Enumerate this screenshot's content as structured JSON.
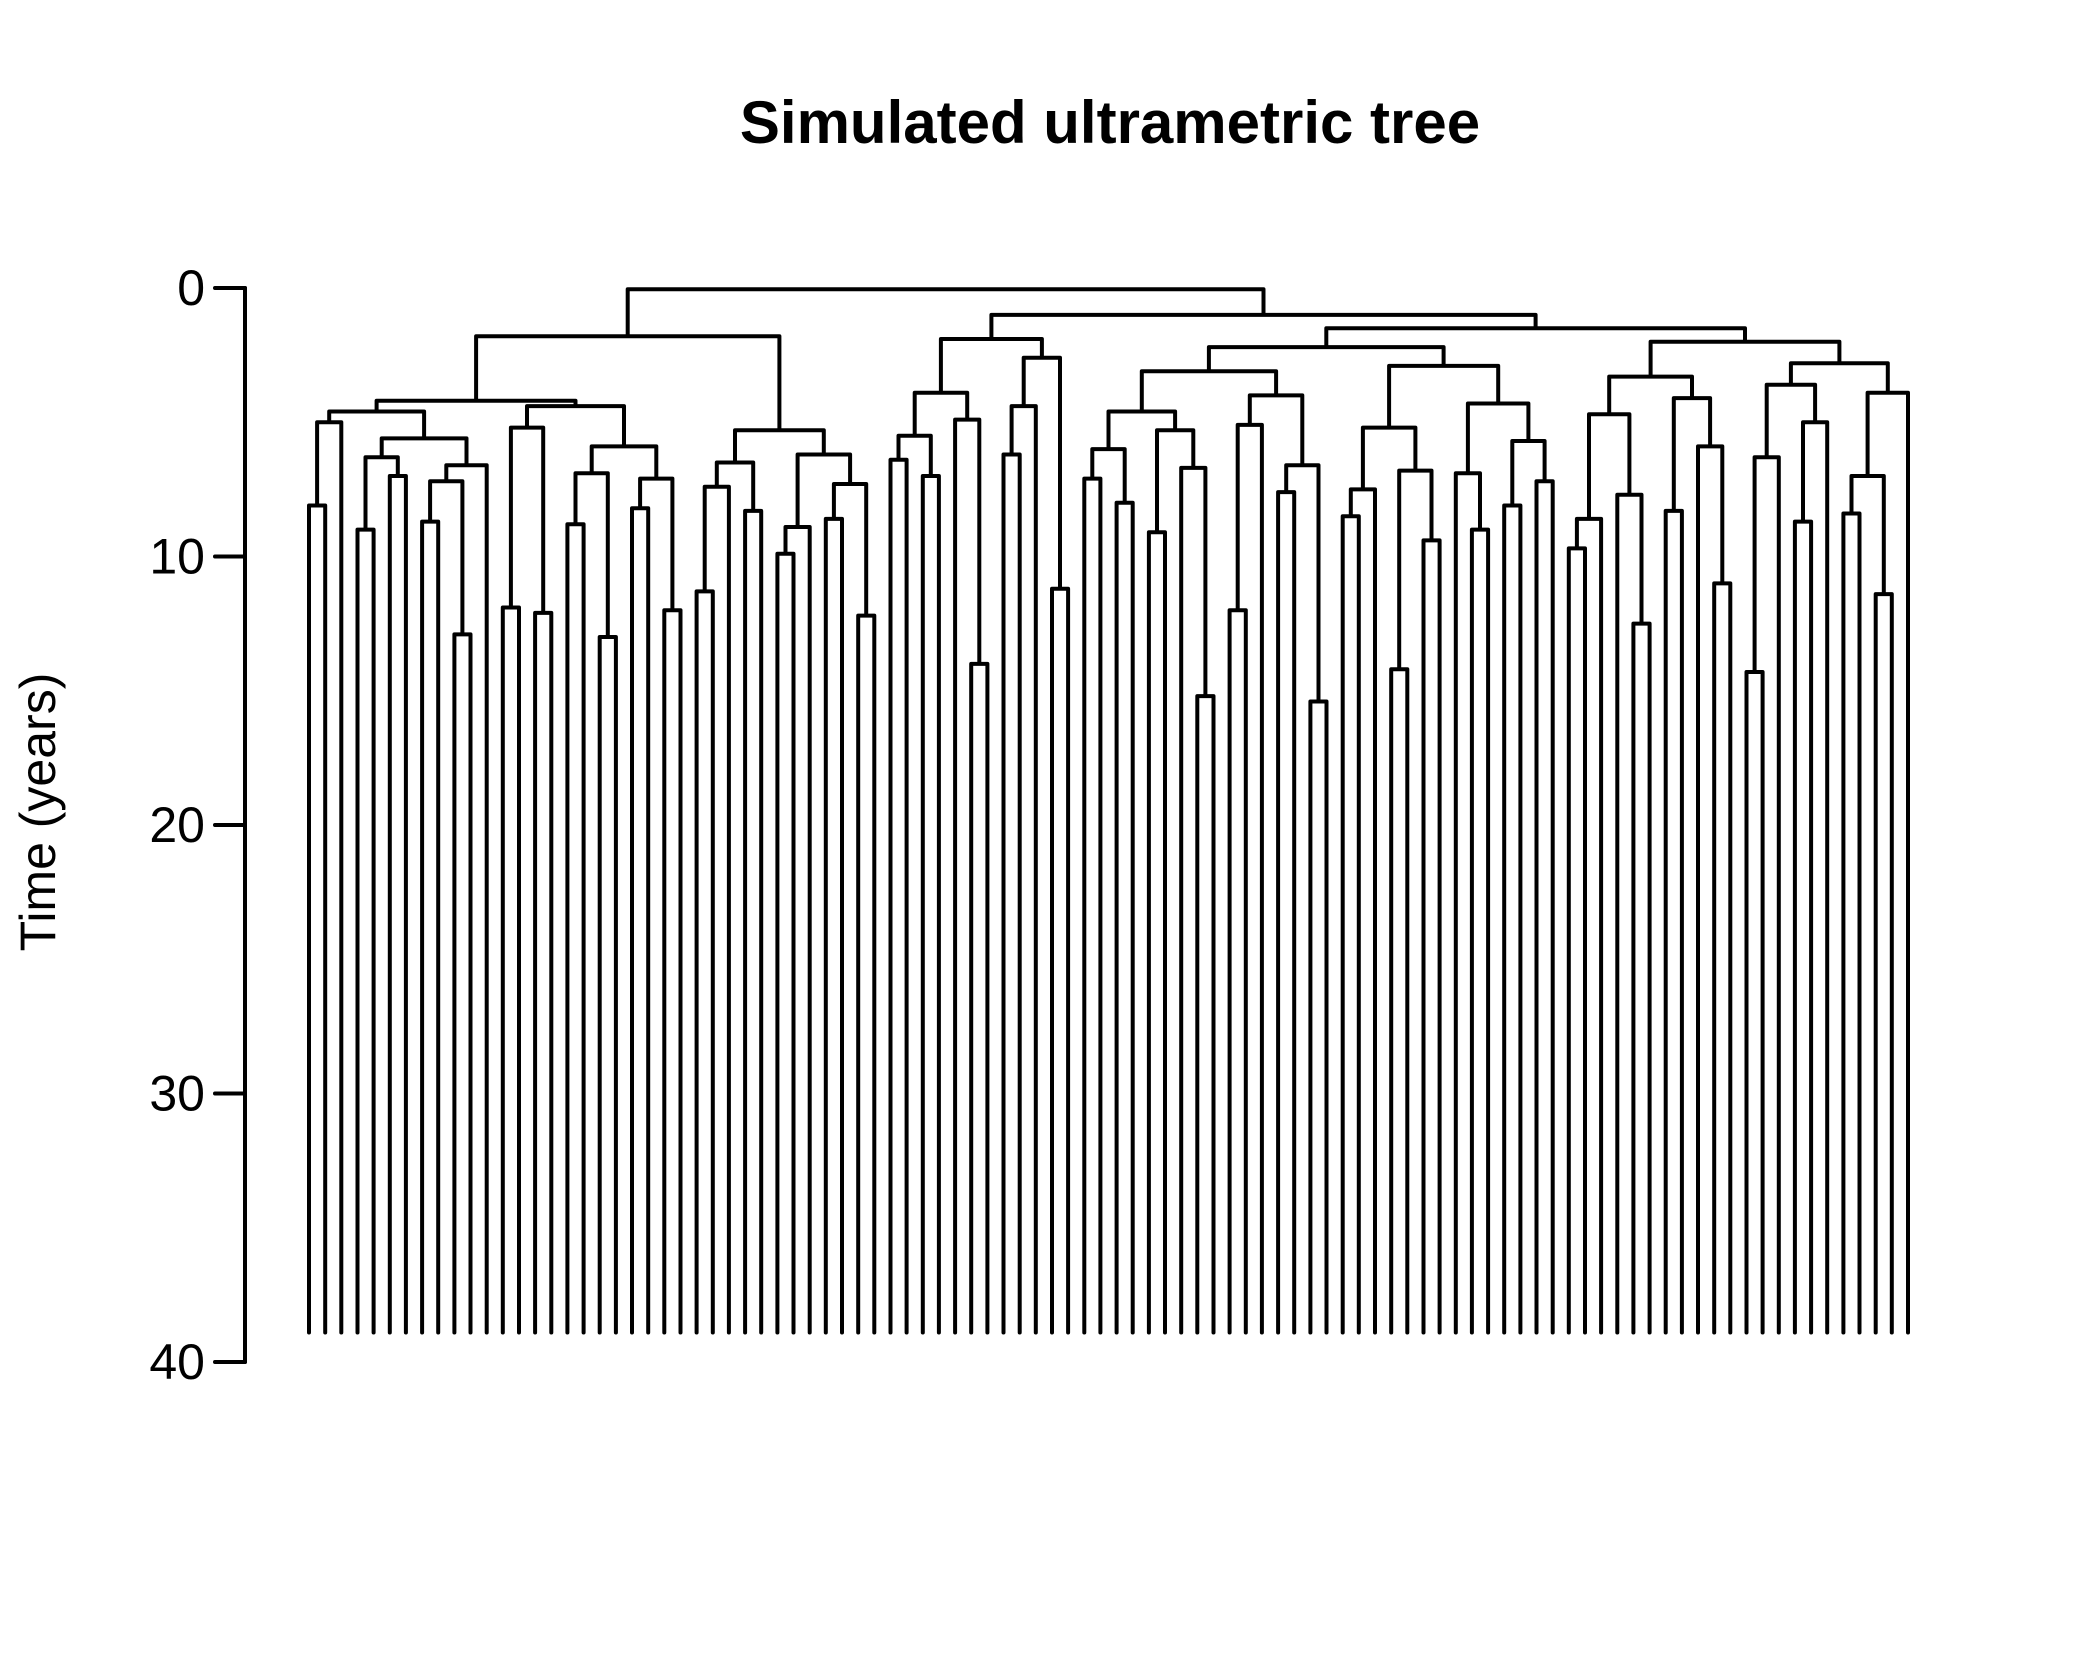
{
  "title": "Simulated ultrametric tree",
  "chart_data": {
    "type": "dendrogram",
    "title": "Simulated ultrametric tree",
    "ylabel": "Time (years)",
    "xlabel": "",
    "y_axis": {
      "ticks": [
        0,
        10,
        20,
        30,
        40
      ],
      "range": [
        0,
        40
      ],
      "direction": "down",
      "unit": "years"
    },
    "orientation": "tips-down",
    "grid": false,
    "legend": false,
    "n_tips": 100,
    "tip_time_years": 38.9,
    "branch_color": "#000000",
    "background_color": "#ffffff",
    "tree_format": "[node_time_years, child1, child2]; 0 denotes a tip whose branch extends to tip_time_years",
    "tree": [
      0.05,
      [
        1.8,
        [
          4.2,
          [
            4.6,
            [
              5.0,
              [
                8.1,
                0,
                0
              ],
              0
            ],
            [
              5.6,
              [
                6.3,
                [
                  9.0,
                  0,
                  0
                ],
                [
                  7.0,
                  0,
                  0
                ]
              ],
              [
                6.6,
                [
                  7.2,
                  [
                    8.7,
                    0,
                    0
                  ],
                  [
                    12.9,
                    0,
                    0
                  ]
                ],
                0
              ]
            ]
          ],
          [
            4.4,
            [
              5.2,
              [
                11.9,
                0,
                0
              ],
              [
                12.1,
                0,
                0
              ]
            ],
            [
              5.9,
              [
                6.9,
                [
                  8.8,
                  0,
                  0
                ],
                [
                  13.0,
                  0,
                  0
                ]
              ],
              [
                7.1,
                [
                  8.2,
                  0,
                  0
                ],
                [
                  12.0,
                  0,
                  0
                ]
              ]
            ]
          ]
        ],
        [
          5.3,
          [
            6.5,
            [
              7.4,
              [
                11.3,
                0,
                0
              ],
              0
            ],
            [
              8.3,
              0,
              0
            ]
          ],
          [
            6.2,
            [
              8.9,
              [
                9.9,
                0,
                0
              ],
              0
            ],
            [
              7.3,
              [
                8.6,
                0,
                0
              ],
              [
                12.2,
                0,
                0
              ]
            ]
          ]
        ]
      ],
      [
        1.0,
        [
          1.9,
          [
            3.9,
            [
              5.5,
              [
                6.4,
                0,
                0
              ],
              [
                7.0,
                0,
                0
              ]
            ],
            [
              4.9,
              0,
              [
                14.0,
                0,
                0
              ]
            ]
          ],
          [
            2.6,
            [
              4.4,
              [
                6.2,
                0,
                0
              ],
              0
            ],
            [
              11.2,
              0,
              0
            ]
          ]
        ],
        [
          1.5,
          [
            2.2,
            [
              3.1,
              [
                4.6,
                [
                  6.0,
                  [
                    7.1,
                    0,
                    0
                  ],
                  [
                    8.0,
                    0,
                    0
                  ]
                ],
                [
                  5.3,
                  [
                    9.1,
                    0,
                    0
                  ],
                  [
                    6.7,
                    0,
                    [
                      15.2,
                      0,
                      0
                    ]
                  ]
                ]
              ],
              [
                4.0,
                [
                  5.1,
                  [
                    12.0,
                    0,
                    0
                  ],
                  0
                ],
                [
                  6.6,
                  [
                    7.6,
                    0,
                    0
                  ],
                  [
                    15.4,
                    0,
                    0
                  ]
                ]
              ]
            ],
            [
              2.9,
              [
                5.2,
                [
                  7.5,
                  [
                    8.5,
                    0,
                    0
                  ],
                  0
                ],
                [
                  6.8,
                  [
                    14.2,
                    0,
                    0
                  ],
                  [
                    9.4,
                    0,
                    0
                  ]
                ]
              ],
              [
                4.3,
                [
                  6.9,
                  0,
                  [
                    9.0,
                    0,
                    0
                  ]
                ],
                [
                  5.7,
                  [
                    8.1,
                    0,
                    0
                  ],
                  [
                    7.2,
                    0,
                    0
                  ]
                ]
              ]
            ]
          ],
          [
            2.0,
            [
              3.3,
              [
                4.7,
                [
                  8.6,
                  [
                    9.7,
                    0,
                    0
                  ],
                  0
                ],
                [
                  7.7,
                  0,
                  [
                    12.5,
                    0,
                    0
                  ]
                ]
              ],
              [
                4.1,
                [
                  8.3,
                  0,
                  0
                ],
                [
                  5.9,
                  0,
                  [
                    11.0,
                    0,
                    0
                  ]
                ]
              ]
            ],
            [
              2.8,
              [
                3.6,
                [
                  6.3,
                  [
                    14.3,
                    0,
                    0
                  ],
                  0
                ],
                [
                  5.0,
                  [
                    8.7,
                    0,
                    0
                  ],
                  0
                ]
              ],
              [
                3.9,
                [
                  7.0,
                  [
                    8.4,
                    0,
                    0
                  ],
                  [
                    11.4,
                    0,
                    0
                  ]
                ],
                0
              ]
            ]
          ]
        ]
      ]
    ]
  }
}
